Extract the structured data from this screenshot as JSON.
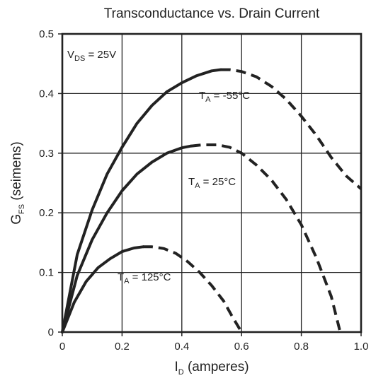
{
  "chart_data": {
    "type": "line",
    "title": "Transconductance vs. Drain Current",
    "xlabel": {
      "main": "I",
      "sub": "D",
      "rest": " (amperes)"
    },
    "ylabel": {
      "main": "G",
      "sub": "FS",
      "rest": " (seimens)"
    },
    "xlim": [
      0,
      1.0
    ],
    "ylim": [
      0,
      0.5
    ],
    "xticks": [
      0,
      0.2,
      0.4,
      0.6,
      0.8,
      1.0
    ],
    "xtick_labels": [
      "0",
      "0.2",
      "0.4",
      "0.6",
      "0.8",
      "1.0"
    ],
    "yticks": [
      0,
      0.1,
      0.2,
      0.3,
      0.4,
      0.5
    ],
    "ytick_labels": [
      "0",
      "0.1",
      "0.2",
      "0.3",
      "0.4",
      "0.5"
    ],
    "grid": true,
    "color": "#222222",
    "condition": {
      "main": "V",
      "sub": "DS",
      "rest": " = 25V"
    },
    "series": [
      {
        "label_main": "T",
        "label_sub": "A",
        "label_rest": " = -55°C",
        "solid": [
          [
            0,
            0
          ],
          [
            0.05,
            0.13
          ],
          [
            0.1,
            0.205
          ],
          [
            0.15,
            0.265
          ],
          [
            0.2,
            0.31
          ],
          [
            0.25,
            0.35
          ],
          [
            0.3,
            0.38
          ],
          [
            0.35,
            0.403
          ],
          [
            0.4,
            0.418
          ],
          [
            0.45,
            0.43
          ],
          [
            0.5,
            0.438
          ],
          [
            0.53,
            0.44
          ]
        ],
        "dashed": [
          [
            0.53,
            0.44
          ],
          [
            0.56,
            0.44
          ],
          [
            0.6,
            0.437
          ],
          [
            0.65,
            0.428
          ],
          [
            0.7,
            0.412
          ],
          [
            0.75,
            0.39
          ],
          [
            0.8,
            0.362
          ],
          [
            0.85,
            0.33
          ],
          [
            0.9,
            0.293
          ],
          [
            0.95,
            0.262
          ],
          [
            1.0,
            0.24
          ]
        ]
      },
      {
        "label_main": "T",
        "label_sub": "A",
        "label_rest": " = 25°C",
        "solid": [
          [
            0,
            0
          ],
          [
            0.05,
            0.095
          ],
          [
            0.1,
            0.155
          ],
          [
            0.15,
            0.2
          ],
          [
            0.2,
            0.237
          ],
          [
            0.25,
            0.265
          ],
          [
            0.3,
            0.285
          ],
          [
            0.35,
            0.3
          ],
          [
            0.4,
            0.309
          ],
          [
            0.43,
            0.312
          ]
        ],
        "dashed": [
          [
            0.43,
            0.312
          ],
          [
            0.47,
            0.314
          ],
          [
            0.52,
            0.314
          ],
          [
            0.56,
            0.31
          ],
          [
            0.6,
            0.3
          ],
          [
            0.65,
            0.28
          ],
          [
            0.7,
            0.255
          ],
          [
            0.75,
            0.222
          ],
          [
            0.8,
            0.18
          ],
          [
            0.85,
            0.125
          ],
          [
            0.9,
            0.06
          ],
          [
            0.93,
            0.0
          ]
        ]
      },
      {
        "label_main": "T",
        "label_sub": "A",
        "label_rest": " = 125°C",
        "solid": [
          [
            0,
            0
          ],
          [
            0.04,
            0.05
          ],
          [
            0.08,
            0.085
          ],
          [
            0.12,
            0.108
          ],
          [
            0.16,
            0.123
          ],
          [
            0.2,
            0.135
          ],
          [
            0.24,
            0.141
          ],
          [
            0.27,
            0.143
          ]
        ],
        "dashed": [
          [
            0.27,
            0.143
          ],
          [
            0.3,
            0.143
          ],
          [
            0.34,
            0.14
          ],
          [
            0.38,
            0.132
          ],
          [
            0.42,
            0.118
          ],
          [
            0.46,
            0.1
          ],
          [
            0.5,
            0.078
          ],
          [
            0.54,
            0.052
          ],
          [
            0.57,
            0.025
          ],
          [
            0.6,
            0.0
          ]
        ]
      }
    ]
  }
}
